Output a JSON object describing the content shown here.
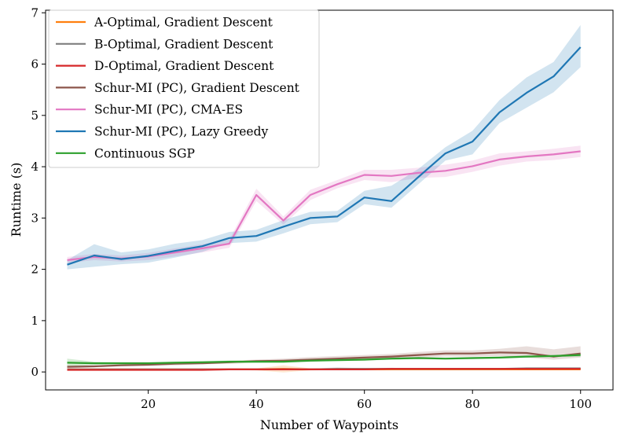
{
  "chart_data": {
    "type": "line",
    "title": "",
    "xlabel": "Number of Waypoints",
    "ylabel": "Runtime (s)",
    "xlim": [
      1,
      106
    ],
    "ylim": [
      -0.35,
      7.05
    ],
    "xticks": [
      20,
      40,
      60,
      80,
      100
    ],
    "yticks": [
      0,
      1,
      2,
      3,
      4,
      5,
      6,
      7
    ],
    "grid": false,
    "legend_position": "top-left",
    "x": [
      5,
      10,
      15,
      20,
      25,
      30,
      35,
      40,
      45,
      50,
      55,
      60,
      65,
      70,
      75,
      80,
      85,
      90,
      95,
      100
    ],
    "series": [
      {
        "name": "A-Optimal, Gradient Descent",
        "color": "#ff7f0e",
        "values": [
          0.05,
          0.05,
          0.05,
          0.05,
          0.05,
          0.05,
          0.05,
          0.05,
          0.06,
          0.05,
          0.05,
          0.05,
          0.05,
          0.05,
          0.05,
          0.05,
          0.05,
          0.05,
          0.05,
          0.05
        ],
        "lower": [
          0.04,
          0.04,
          0.04,
          0.04,
          0.04,
          0.04,
          0.04,
          0.03,
          -0.01,
          0.03,
          0.04,
          0.04,
          0.04,
          0.04,
          0.04,
          0.04,
          0.04,
          0.04,
          0.04,
          0.04
        ],
        "upper": [
          0.06,
          0.06,
          0.06,
          0.06,
          0.06,
          0.06,
          0.06,
          0.07,
          0.13,
          0.07,
          0.06,
          0.06,
          0.06,
          0.06,
          0.06,
          0.06,
          0.06,
          0.06,
          0.06,
          0.06
        ]
      },
      {
        "name": "B-Optimal, Gradient Descent",
        "color": "#7f7f7f",
        "values": [
          0.05,
          0.05,
          0.05,
          0.05,
          0.05,
          0.05,
          0.05,
          0.05,
          0.05,
          0.05,
          0.06,
          0.06,
          0.06,
          0.06,
          0.06,
          0.06,
          0.06,
          0.07,
          0.07,
          0.07
        ],
        "lower": [
          0.04,
          0.04,
          0.04,
          0.04,
          0.04,
          0.04,
          0.04,
          0.04,
          0.04,
          0.04,
          0.05,
          0.05,
          0.05,
          0.05,
          0.05,
          0.05,
          0.05,
          0.05,
          0.05,
          0.05
        ],
        "upper": [
          0.06,
          0.06,
          0.06,
          0.06,
          0.06,
          0.06,
          0.06,
          0.06,
          0.06,
          0.06,
          0.09,
          0.07,
          0.08,
          0.07,
          0.07,
          0.07,
          0.07,
          0.09,
          0.09,
          0.09
        ]
      },
      {
        "name": "D-Optimal, Gradient Descent",
        "color": "#d62728",
        "values": [
          0.04,
          0.04,
          0.04,
          0.04,
          0.04,
          0.04,
          0.05,
          0.05,
          0.05,
          0.05,
          0.05,
          0.05,
          0.06,
          0.06,
          0.06,
          0.06,
          0.06,
          0.06,
          0.06,
          0.06
        ],
        "lower": [
          0.03,
          0.03,
          0.03,
          0.03,
          0.03,
          0.03,
          0.04,
          0.04,
          0.04,
          0.04,
          0.04,
          0.04,
          0.05,
          0.05,
          0.05,
          0.05,
          0.05,
          0.05,
          0.05,
          0.05
        ],
        "upper": [
          0.05,
          0.05,
          0.05,
          0.05,
          0.05,
          0.05,
          0.06,
          0.06,
          0.06,
          0.06,
          0.06,
          0.06,
          0.07,
          0.07,
          0.07,
          0.07,
          0.07,
          0.07,
          0.07,
          0.07
        ]
      },
      {
        "name": "Schur-MI (PC), Gradient Descent",
        "color": "#8c564b",
        "values": [
          0.1,
          0.11,
          0.13,
          0.14,
          0.16,
          0.17,
          0.19,
          0.21,
          0.22,
          0.24,
          0.26,
          0.28,
          0.3,
          0.33,
          0.36,
          0.36,
          0.38,
          0.37,
          0.3,
          0.36
        ],
        "lower": [
          0.07,
          0.09,
          0.11,
          0.12,
          0.13,
          0.15,
          0.16,
          0.18,
          0.19,
          0.2,
          0.22,
          0.24,
          0.25,
          0.28,
          0.3,
          0.3,
          0.31,
          0.28,
          0.24,
          0.28
        ],
        "upper": [
          0.13,
          0.13,
          0.15,
          0.16,
          0.19,
          0.2,
          0.22,
          0.24,
          0.26,
          0.29,
          0.31,
          0.33,
          0.35,
          0.39,
          0.42,
          0.42,
          0.45,
          0.5,
          0.44,
          0.5
        ]
      },
      {
        "name": "Schur-MI (PC), CMA-ES",
        "color": "#e377c2",
        "values": [
          2.18,
          2.24,
          2.21,
          2.25,
          2.33,
          2.41,
          2.5,
          3.45,
          2.95,
          3.45,
          3.66,
          3.84,
          3.82,
          3.88,
          3.92,
          4.01,
          4.14,
          4.2,
          4.24,
          4.3
        ],
        "lower": [
          2.12,
          2.18,
          2.15,
          2.18,
          2.25,
          2.33,
          2.42,
          3.33,
          2.87,
          3.35,
          3.58,
          3.74,
          3.7,
          3.78,
          3.8,
          3.9,
          4.02,
          4.1,
          4.13,
          4.19
        ],
        "upper": [
          2.24,
          2.3,
          2.27,
          2.32,
          2.41,
          2.49,
          2.58,
          3.57,
          3.03,
          3.55,
          3.74,
          3.94,
          3.94,
          3.98,
          4.04,
          4.12,
          4.26,
          4.3,
          4.35,
          4.41
        ]
      },
      {
        "name": "Schur-MI (PC), Lazy Greedy",
        "color": "#1f77b4",
        "values": [
          2.09,
          2.27,
          2.2,
          2.26,
          2.36,
          2.45,
          2.61,
          2.65,
          2.83,
          3.0,
          3.03,
          3.4,
          3.33,
          3.8,
          4.26,
          4.49,
          5.06,
          5.44,
          5.76,
          6.33
        ],
        "lower": [
          2.0,
          2.05,
          2.1,
          2.13,
          2.23,
          2.34,
          2.51,
          2.54,
          2.7,
          2.88,
          2.92,
          3.27,
          3.2,
          3.66,
          4.12,
          4.24,
          4.85,
          5.15,
          5.45,
          5.94
        ],
        "upper": [
          2.18,
          2.49,
          2.33,
          2.39,
          2.5,
          2.57,
          2.73,
          2.77,
          2.96,
          3.12,
          3.14,
          3.53,
          3.63,
          3.96,
          4.38,
          4.7,
          5.3,
          5.74,
          6.04,
          6.76
        ]
      },
      {
        "name": "Continuous SGP",
        "color": "#2ca02c",
        "values": [
          0.18,
          0.17,
          0.17,
          0.17,
          0.18,
          0.19,
          0.2,
          0.2,
          0.2,
          0.22,
          0.23,
          0.24,
          0.26,
          0.27,
          0.26,
          0.27,
          0.28,
          0.3,
          0.31,
          0.33
        ],
        "lower": [
          0.1,
          0.14,
          0.15,
          0.15,
          0.16,
          0.17,
          0.18,
          0.18,
          0.18,
          0.2,
          0.21,
          0.22,
          0.24,
          0.25,
          0.24,
          0.25,
          0.26,
          0.28,
          0.29,
          0.3
        ],
        "upper": [
          0.26,
          0.2,
          0.19,
          0.19,
          0.2,
          0.21,
          0.22,
          0.22,
          0.22,
          0.24,
          0.25,
          0.26,
          0.28,
          0.29,
          0.28,
          0.29,
          0.3,
          0.32,
          0.33,
          0.36
        ]
      }
    ]
  }
}
